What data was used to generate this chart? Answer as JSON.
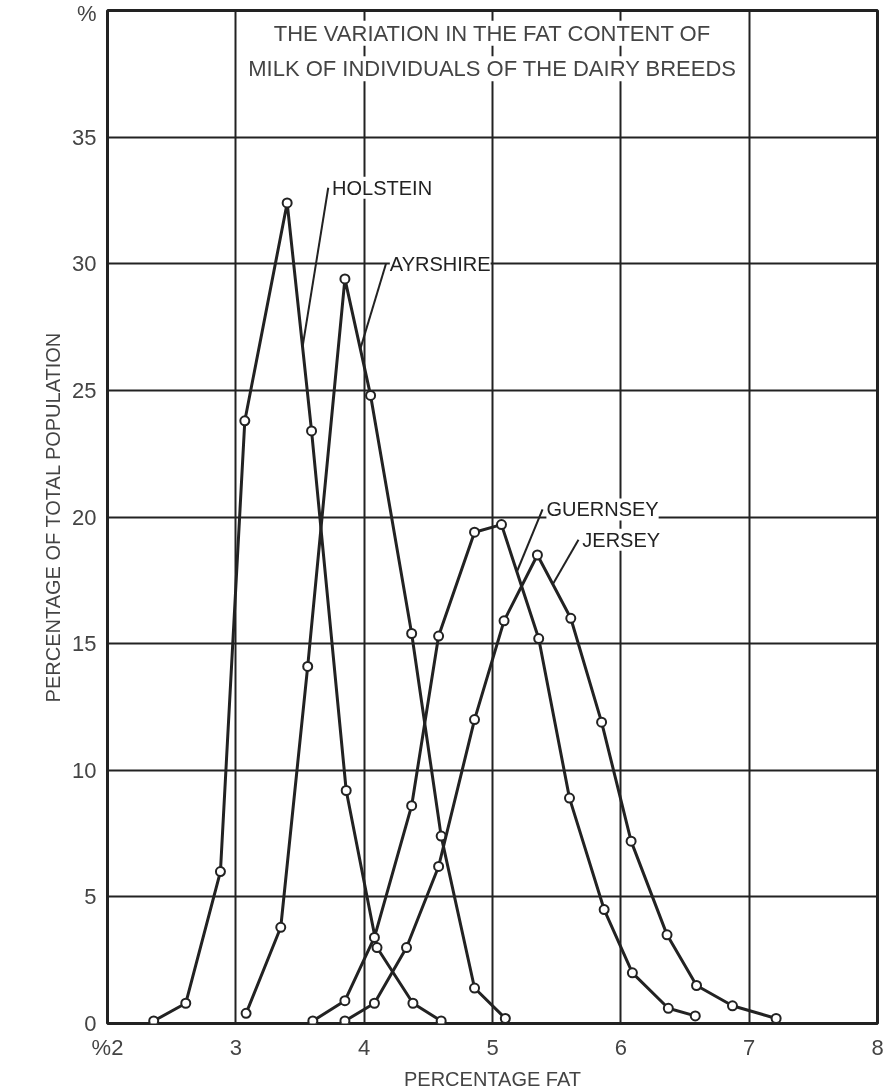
{
  "chart_data": {
    "type": "line",
    "title": "THE VARIATION IN THE FAT CONTENT OF\nMILK OF INDIVIDUALS OF THE DAIRY BREEDS",
    "xlabel": "PERCENTAGE FAT",
    "ylabel": "PERCENTAGE OF TOTAL POPULATION",
    "xlim": [
      2,
      8
    ],
    "ylim": [
      0,
      40
    ],
    "xticks": [
      {
        "value": 2,
        "label": "%2"
      },
      3,
      4,
      5,
      6,
      7,
      8
    ],
    "yticks": [
      0,
      5,
      10,
      15,
      20,
      25,
      30,
      35,
      {
        "value": 40,
        "label": "%"
      }
    ],
    "grid": true,
    "marker": "circle",
    "line_style": "solid",
    "series": [
      {
        "name": "HOLSTEIN",
        "color": "#222222",
        "x": [
          2.36,
          2.61,
          2.88,
          3.07,
          3.4,
          3.59,
          3.86,
          4.1,
          4.38,
          4.6
        ],
        "values": [
          0.1,
          0.8,
          6.0,
          23.8,
          32.4,
          23.4,
          9.2,
          3.0,
          0.8,
          0.1
        ]
      },
      {
        "name": "AYRSHIRE",
        "color": "#222222",
        "x": [
          3.08,
          3.35,
          3.56,
          3.85,
          4.05,
          4.37,
          4.6,
          4.86,
          5.1
        ],
        "values": [
          0.4,
          3.8,
          14.1,
          29.4,
          24.8,
          15.4,
          7.4,
          1.4,
          0.2
        ]
      },
      {
        "name": "GUERNSEY",
        "color": "#222222",
        "x": [
          3.6,
          3.85,
          4.08,
          4.37,
          4.58,
          4.86,
          5.07,
          5.36,
          5.6,
          5.87,
          6.09,
          6.37,
          6.58
        ],
        "values": [
          0.1,
          0.9,
          3.4,
          8.6,
          15.3,
          19.4,
          19.7,
          15.2,
          8.9,
          4.5,
          2.0,
          0.6,
          0.3
        ]
      },
      {
        "name": "JERSEY",
        "color": "#222222",
        "x": [
          3.85,
          4.08,
          4.33,
          4.58,
          4.86,
          5.09,
          5.35,
          5.61,
          5.85,
          6.08,
          6.36,
          6.59,
          6.87,
          7.21
        ],
        "values": [
          0.1,
          0.8,
          3.0,
          6.2,
          12.0,
          15.9,
          18.5,
          16.0,
          11.9,
          7.2,
          3.5,
          1.5,
          0.7,
          0.2
        ]
      }
    ]
  }
}
